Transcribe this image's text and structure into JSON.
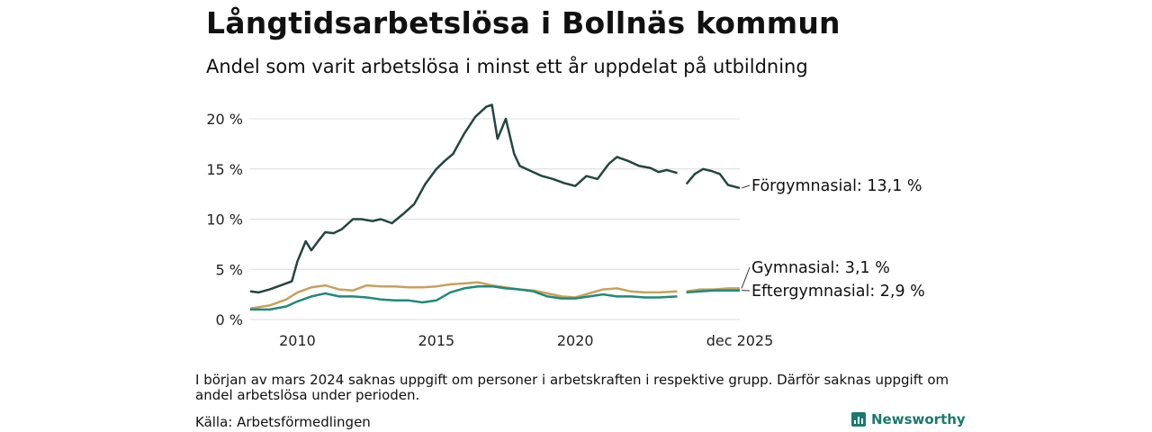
{
  "header": {
    "title": "Långtidsarbetslösa i Bollnäs kommun",
    "subtitle": "Andel som varit arbetslösa i minst ett år uppdelat på utbildning"
  },
  "footer": {
    "note": "I början av mars 2024 saknas uppgift om personer i arbetskraften i respektive grupp. Därför saknas uppgift om andel arbetslösa under perioden.",
    "source": "Källa: Arbetsförmedlingen",
    "brand": "Newsworthy"
  },
  "chart_data": {
    "type": "line",
    "title": "Långtidsarbetslösa i Bollnäs kommun",
    "ylim": [
      0,
      20
    ],
    "y_ticks": [
      0,
      5,
      10,
      15,
      20
    ],
    "y_tick_labels": [
      "0 %",
      "5 %",
      "10 %",
      "15 %",
      "20 %"
    ],
    "x_range": [
      2008.3,
      2025.92
    ],
    "x_ticks": [
      2010,
      2015,
      2020,
      2025.92
    ],
    "x_tick_labels": [
      "2010",
      "2015",
      "2020",
      "dec 2025"
    ],
    "gap": [
      2023.67,
      2024.0
    ],
    "grid": true,
    "series": [
      {
        "name": "Förgymnasial",
        "end_label": "Förgymnasial: 13,1 %",
        "color": "#22463f",
        "x": [
          2008.3,
          2008.6,
          2009.0,
          2009.4,
          2009.8,
          2010.0,
          2010.3,
          2010.5,
          2010.8,
          2011.0,
          2011.3,
          2011.6,
          2012.0,
          2012.3,
          2012.7,
          2013.0,
          2013.4,
          2013.8,
          2014.2,
          2014.6,
          2015.0,
          2015.3,
          2015.6,
          2016.0,
          2016.4,
          2016.8,
          2017.0,
          2017.2,
          2017.5,
          2017.8,
          2018.0,
          2018.4,
          2018.8,
          2019.2,
          2019.6,
          2020.0,
          2020.4,
          2020.8,
          2021.2,
          2021.5,
          2021.9,
          2022.3,
          2022.7,
          2023.0,
          2023.3,
          2023.67,
          2024.0,
          2024.3,
          2024.6,
          2024.9,
          2025.2,
          2025.5,
          2025.92
        ],
        "values": [
          2.8,
          2.7,
          3.0,
          3.4,
          3.8,
          5.8,
          7.8,
          6.9,
          8.0,
          8.7,
          8.6,
          9.0,
          10.0,
          10.0,
          9.8,
          10.0,
          9.6,
          10.5,
          11.5,
          13.5,
          15.0,
          15.8,
          16.5,
          18.5,
          20.2,
          21.2,
          21.4,
          18.0,
          20.0,
          16.5,
          15.3,
          14.8,
          14.3,
          14.0,
          13.6,
          13.3,
          14.3,
          14.0,
          15.5,
          16.2,
          15.8,
          15.3,
          15.1,
          14.7,
          14.9,
          14.6,
          13.5,
          14.5,
          15.0,
          14.8,
          14.5,
          13.4,
          13.1
        ]
      },
      {
        "name": "Gymnasial",
        "end_label": "Gymnasial:  3,1 %",
        "color": "#c9a05a",
        "x": [
          2008.3,
          2009.0,
          2009.6,
          2010.0,
          2010.5,
          2011.0,
          2011.5,
          2012.0,
          2012.5,
          2013.0,
          2013.5,
          2014.0,
          2014.5,
          2015.0,
          2015.5,
          2016.0,
          2016.5,
          2017.0,
          2017.5,
          2018.0,
          2018.5,
          2019.0,
          2019.5,
          2020.0,
          2020.5,
          2021.0,
          2021.5,
          2022.0,
          2022.5,
          2023.0,
          2023.67,
          2024.0,
          2024.5,
          2025.0,
          2025.5,
          2025.92
        ],
        "values": [
          1.1,
          1.4,
          2.0,
          2.7,
          3.2,
          3.4,
          3.0,
          2.9,
          3.4,
          3.3,
          3.3,
          3.2,
          3.2,
          3.3,
          3.5,
          3.6,
          3.7,
          3.4,
          3.2,
          3.0,
          2.9,
          2.6,
          2.3,
          2.2,
          2.6,
          3.0,
          3.1,
          2.8,
          2.7,
          2.7,
          2.8,
          2.8,
          3.0,
          3.0,
          3.1,
          3.1
        ]
      },
      {
        "name": "Eftergymnasial",
        "end_label": "Eftergymnasial:  2,9 %",
        "color": "#1f8a7a",
        "x": [
          2008.3,
          2009.0,
          2009.6,
          2010.0,
          2010.5,
          2011.0,
          2011.5,
          2012.0,
          2012.5,
          2013.0,
          2013.5,
          2014.0,
          2014.5,
          2015.0,
          2015.5,
          2016.0,
          2016.5,
          2017.0,
          2017.5,
          2018.0,
          2018.5,
          2019.0,
          2019.5,
          2020.0,
          2020.5,
          2021.0,
          2021.5,
          2022.0,
          2022.5,
          2023.0,
          2023.67,
          2024.0,
          2024.5,
          2025.0,
          2025.5,
          2025.92
        ],
        "values": [
          1.0,
          1.0,
          1.3,
          1.8,
          2.3,
          2.6,
          2.3,
          2.3,
          2.2,
          2.0,
          1.9,
          1.9,
          1.7,
          1.9,
          2.7,
          3.1,
          3.3,
          3.3,
          3.1,
          3.0,
          2.8,
          2.3,
          2.1,
          2.1,
          2.3,
          2.5,
          2.3,
          2.3,
          2.2,
          2.2,
          2.3,
          2.7,
          2.8,
          2.9,
          2.9,
          2.9
        ]
      }
    ]
  }
}
